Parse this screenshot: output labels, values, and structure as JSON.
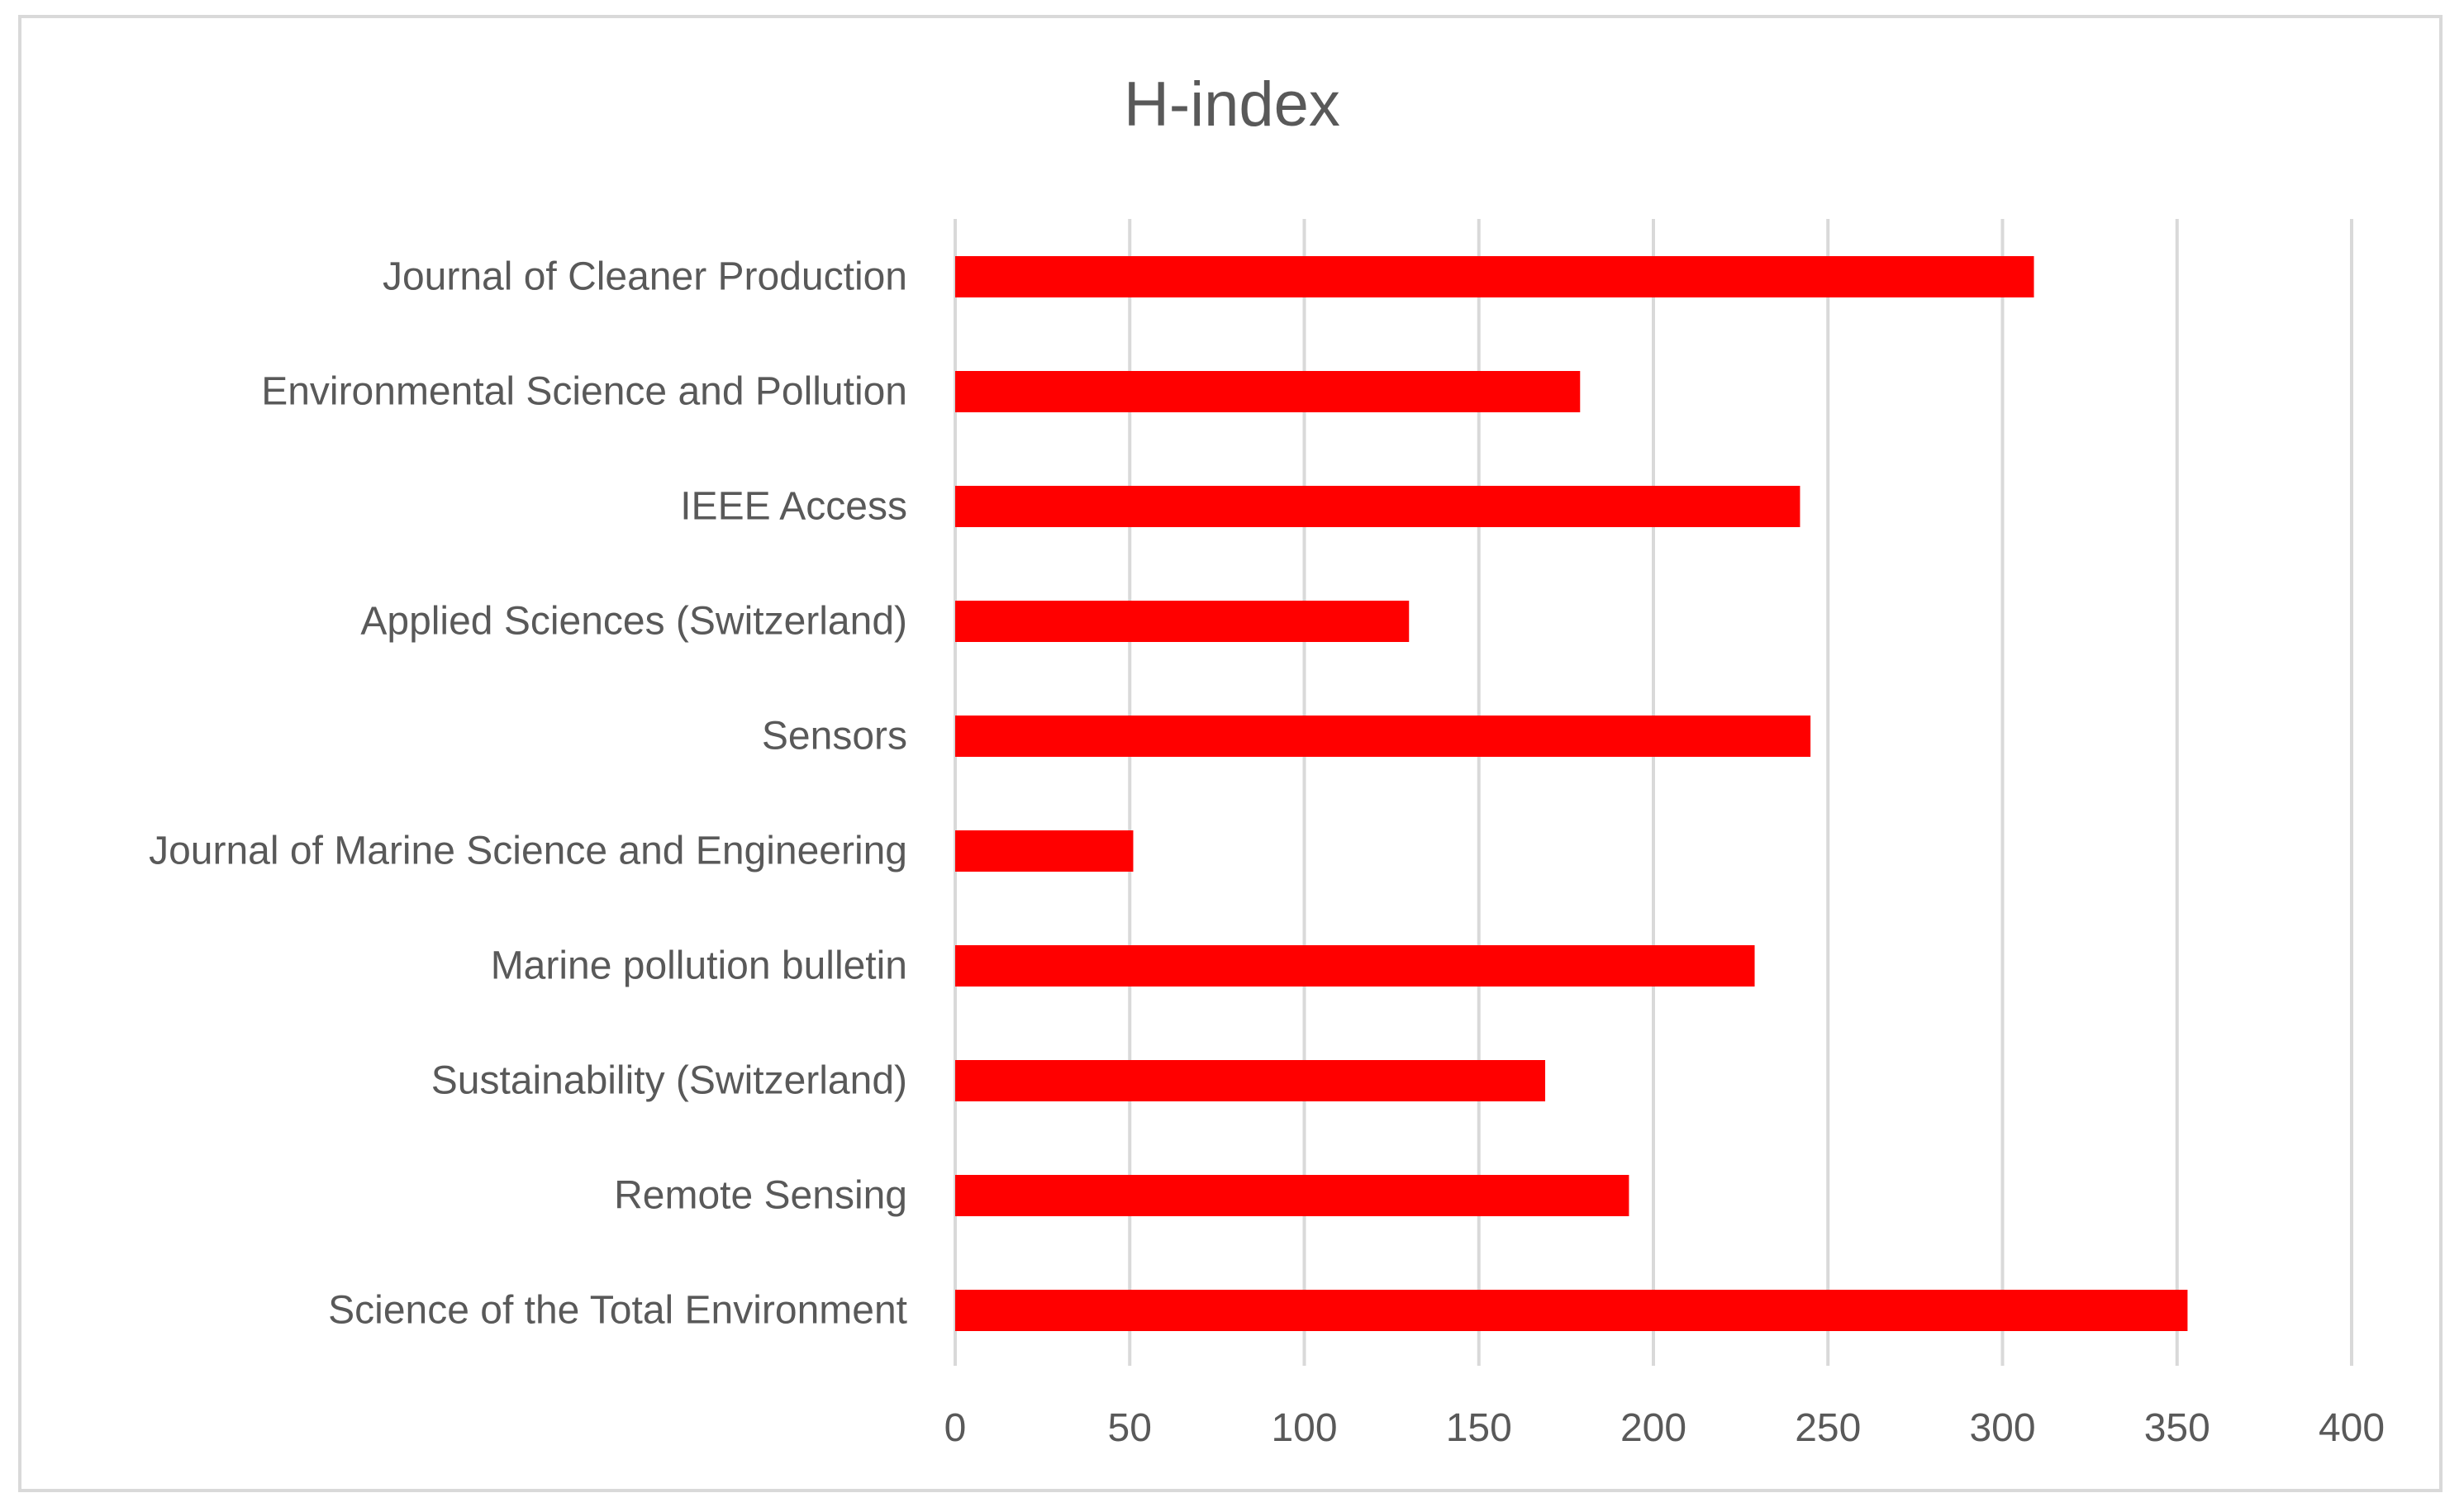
{
  "chart_data": {
    "type": "bar",
    "orientation": "horizontal",
    "title": "H-index",
    "xlabel": "",
    "ylabel": "",
    "categories": [
      "Journal of Cleaner Production",
      "Environmental Science and Pollution ",
      "IEEE Access",
      "Applied Sciences (Switzerland)",
      "Sensors",
      "Journal of Marine Science and Engineering",
      "Marine pollution bulletin",
      "Sustainability (Switzerland)",
      "Remote Sensing",
      "Science of the Total Environment"
    ],
    "values": [
      309,
      179,
      242,
      130,
      245,
      51,
      229,
      169,
      193,
      353
    ],
    "xlim": [
      0,
      400
    ],
    "x_ticks": [
      "0",
      "50",
      "100",
      "150",
      "200",
      "250",
      "300",
      "350",
      "400"
    ],
    "grid": "vertical",
    "legend": "none",
    "bar_color": "#ff0000"
  }
}
